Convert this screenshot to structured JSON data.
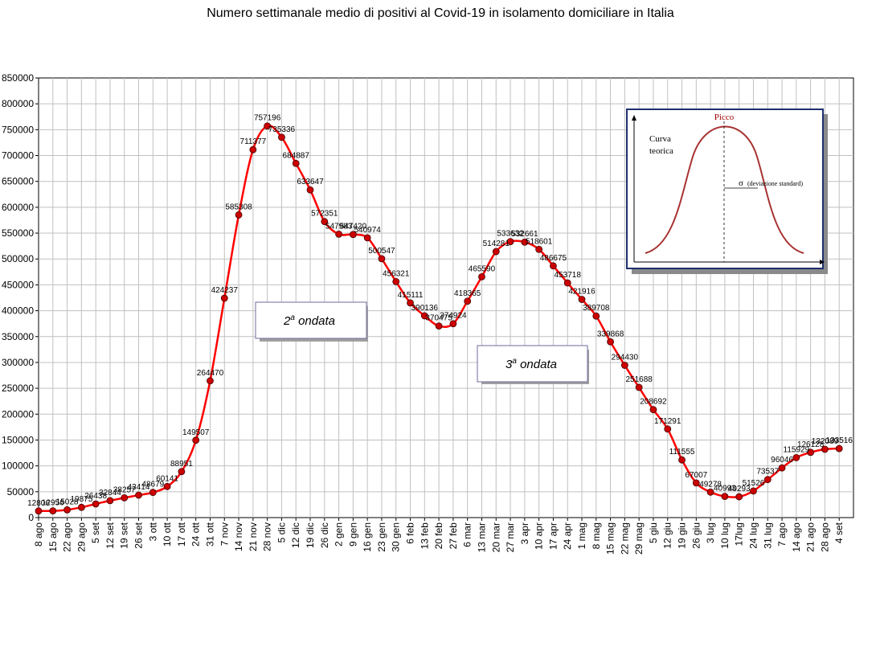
{
  "chart_data": {
    "type": "line",
    "title": "Numero settimanale medio di positivi al Covid-19  in isolamento domiciliare in Italia",
    "xlabel": "",
    "ylabel": "",
    "ylim": [
      0,
      850000
    ],
    "ytick_step": 50000,
    "y_tick_labels": [
      "0",
      "50000",
      "100000",
      "150000",
      "200000",
      "250000",
      "300000",
      "350000",
      "400000",
      "450000",
      "500000",
      "550000",
      "600000",
      "650000",
      "700000",
      "750000",
      "800000",
      "850000"
    ],
    "grid": true,
    "line_color": "#ff0000",
    "marker_color": "#cc0000",
    "categories": [
      "8 ago",
      "15 ago",
      "22 ago",
      "29 ago",
      "5 set",
      "12 set",
      "19 set",
      "26 set",
      "3 ott",
      "10 ott",
      "17 ott",
      "24 ott",
      "31 ott",
      "7 nov",
      "14 nov",
      "21 nov",
      "28 nov",
      "5 dic",
      "12 dic",
      "19 dic",
      "26 dic",
      "2 gen",
      "9 gen",
      "16 gen",
      "23 gen",
      "30 gen",
      "6 feb",
      "13 feb",
      "20 feb",
      "27 feb",
      "6 mar",
      "13 mar",
      "20 mar",
      "27 mar",
      "3 apr",
      "10 apr",
      "17 apr",
      "24 apr",
      "1 mag",
      "8 mag",
      "15 mag",
      "22 mag",
      "29 mag",
      "5 giu",
      "12 giu",
      "19 giu",
      "26 giu",
      "3 lug",
      "10 lug",
      "17lug",
      "24 lug",
      "31 lug",
      "7 ago",
      "14 ago",
      "21 ago",
      "28 ago",
      "4 set"
    ],
    "values": [
      12806,
      12956,
      15028,
      19875,
      26438,
      32844,
      38257,
      43414,
      48679,
      60141,
      88951,
      149507,
      264470,
      424237,
      585308,
      711377,
      757196,
      735336,
      684887,
      633647,
      572351,
      547983,
      547420,
      540974,
      500547,
      456321,
      415111,
      390136,
      370475,
      374924,
      418365,
      465590,
      514281,
      533632,
      532661,
      518601,
      486675,
      453718,
      421916,
      389708,
      339868,
      294430,
      251688,
      208692,
      171291,
      111555,
      67007,
      49278,
      40993,
      40293,
      51526,
      73537,
      96046,
      115929,
      126128,
      132089,
      133516
    ],
    "data_labels": [
      "12806",
      "12956",
      "15028",
      "19875",
      "26438",
      "32844",
      "38257",
      "43414",
      "48679",
      "60141",
      "88951",
      "149507",
      "264470",
      "424237",
      "585308",
      "711377",
      "757196",
      "735336",
      "684887",
      "633647",
      "572351",
      "547983",
      "547420",
      "540974",
      "500547",
      "456321",
      "415111",
      "390136",
      "370475",
      "374924",
      "418365",
      "465590",
      "514281",
      "533632",
      "532661",
      "518601",
      "486675",
      "453718",
      "421916",
      "389708",
      "339868",
      "294430",
      "251688",
      "208692",
      "171291",
      "111555",
      "67007",
      "49278",
      "40993",
      "40293",
      "51526",
      "73537",
      "96046",
      "115929",
      "126128",
      "132089",
      "133516"
    ]
  },
  "annotations": {
    "wave2": {
      "prefix": "2",
      "sup": "a",
      "suffix": " ondata"
    },
    "wave3": {
      "prefix": "3",
      "sup": "a",
      "suffix": " ondata"
    }
  },
  "inset": {
    "curve_label_line1": "Curva",
    "curve_label_line2": "teorica",
    "peak_label": "Picco",
    "sigma_symbol": "σ",
    "sigma_label": "(deviazione standard)",
    "curve_color": "#a83232",
    "frame_color": "#1f2f6f"
  }
}
